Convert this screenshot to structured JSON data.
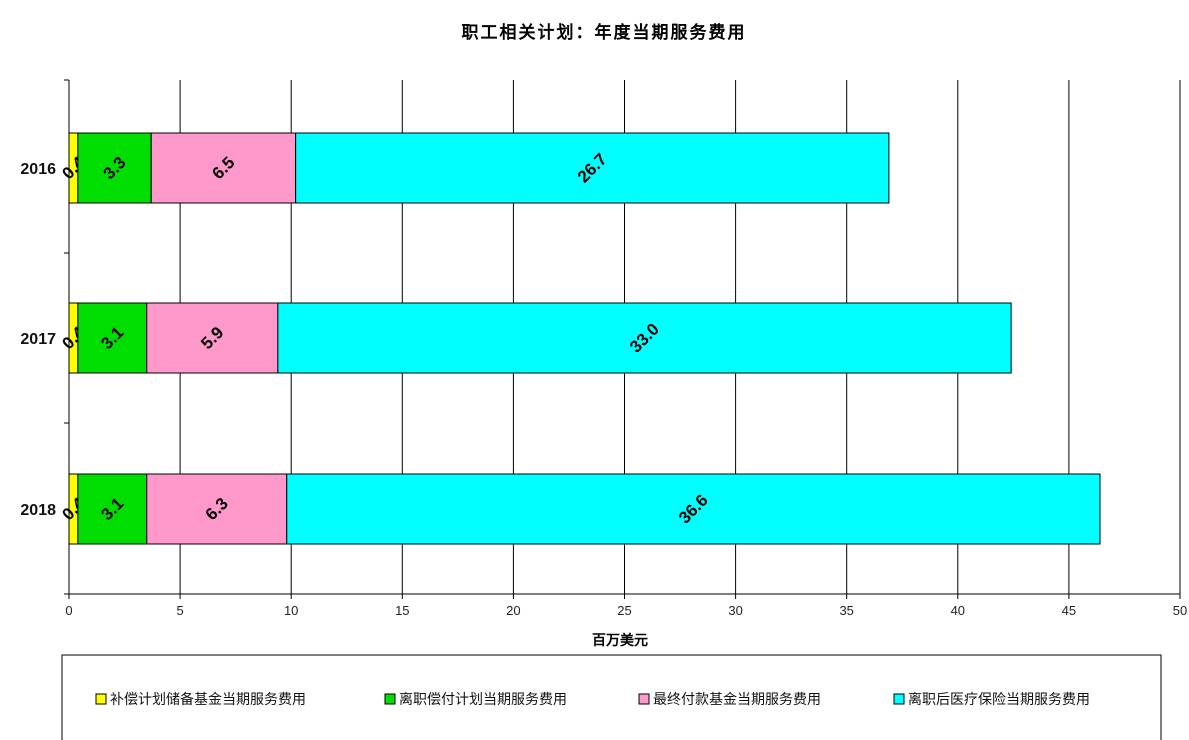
{
  "chart_data": {
    "type": "bar",
    "orientation": "horizontal",
    "stacked": true,
    "title": "职工相关计划：年度当期服务费用",
    "xlabel": "百万美元",
    "ylabel": "",
    "xlim": [
      0,
      50
    ],
    "xticks": [
      0,
      5,
      10,
      15,
      20,
      25,
      30,
      35,
      40,
      45,
      50
    ],
    "grid": "vertical",
    "legend_position": "bottom",
    "categories": [
      "2016",
      "2017",
      "2018"
    ],
    "series": [
      {
        "name": "补偿计划储备基金当期服务费用",
        "color": "#ffff00",
        "values": [
          0.4,
          0.4,
          0.4
        ],
        "labels": [
          "0.4",
          "0.4",
          "0.4"
        ]
      },
      {
        "name": "离职偿付计划当期服务费用",
        "color": "#00dd00",
        "values": [
          3.3,
          3.1,
          3.1
        ],
        "labels": [
          "3.3",
          "3.1",
          "3.1"
        ]
      },
      {
        "name": "最终付款基金当期服务费用",
        "color": "#ff99cc",
        "values": [
          6.5,
          5.9,
          6.3
        ],
        "labels": [
          "6.5",
          "5.9",
          "6.3"
        ]
      },
      {
        "name": "离职后医疗保险当期服务费用",
        "color": "#00ffff",
        "values": [
          26.7,
          33.0,
          36.6
        ],
        "labels": [
          "26.7",
          "33.0",
          "36.6"
        ]
      }
    ]
  }
}
